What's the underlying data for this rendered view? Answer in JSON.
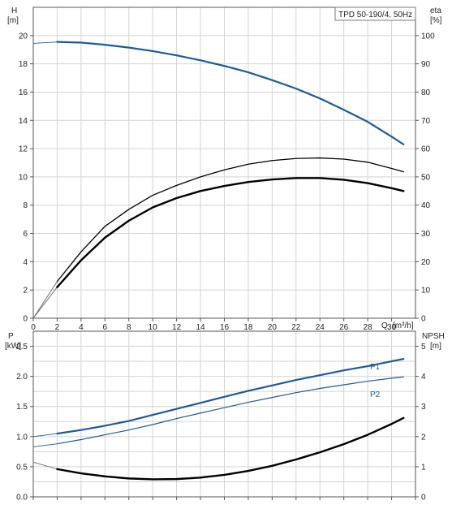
{
  "chart_data": [
    {
      "type": "line",
      "title": "TPD 50-190/4, 50Hz",
      "xlabel": "Q [m³/h]",
      "xlabel_parts": [
        "Q",
        "[m³/h]"
      ],
      "ylabel": "H [m]",
      "ylabel_parts": [
        "H",
        "[m]"
      ],
      "y2label": "eta [%]",
      "y2label_parts": [
        "eta",
        "[%]"
      ],
      "xlim": [
        0,
        32
      ],
      "ylim": [
        0,
        22
      ],
      "y2lim": [
        0,
        110
      ],
      "xticks": [
        0,
        2,
        4,
        6,
        8,
        10,
        12,
        14,
        16,
        18,
        20,
        22,
        24,
        26,
        28,
        30
      ],
      "yticks": [
        0,
        2,
        4,
        6,
        8,
        10,
        12,
        14,
        16,
        18,
        20
      ],
      "y2ticks": [
        0,
        10,
        20,
        30,
        40,
        50,
        60,
        70,
        80,
        90,
        100
      ],
      "grid": true,
      "series": [
        {
          "axis": "left",
          "color": "#1f5a96",
          "x": [
            0,
            2,
            4,
            6,
            8,
            10,
            12,
            14,
            16,
            18,
            20,
            22,
            24,
            26,
            28,
            30,
            31
          ],
          "values": [
            19.45,
            19.55,
            19.5,
            19.35,
            19.15,
            18.9,
            18.6,
            18.25,
            17.85,
            17.4,
            16.85,
            16.25,
            15.55,
            14.75,
            13.9,
            12.85,
            12.3
          ]
        },
        {
          "axis": "right",
          "color": "#000000",
          "x": [
            0,
            2,
            4,
            6,
            8,
            10,
            12,
            14,
            16,
            18,
            20,
            22,
            24,
            26,
            28,
            30,
            31
          ],
          "values": [
            0,
            13,
            23.5,
            32.5,
            38.5,
            43.5,
            47,
            50,
            52.5,
            54.5,
            55.8,
            56.5,
            56.7,
            56.3,
            55.2,
            53,
            51.8
          ]
        },
        {
          "axis": "right",
          "color": "#000000",
          "x": [
            0,
            2,
            4,
            6,
            8,
            10,
            12,
            14,
            16,
            18,
            20,
            22,
            24,
            26,
            28,
            30,
            31
          ],
          "values": [
            0,
            11,
            20.5,
            28.5,
            34.5,
            39.2,
            42.5,
            45,
            46.8,
            48.2,
            49.1,
            49.6,
            49.6,
            49,
            47.8,
            46,
            45
          ]
        }
      ]
    },
    {
      "type": "line",
      "xlim": [
        0,
        32
      ],
      "ylabel": "P [kW]",
      "ylabel_parts": [
        "P",
        "[kW]"
      ],
      "y2label": "NPSH [m]",
      "y2label_parts": [
        "NPSH",
        "[m]"
      ],
      "ylim": [
        0,
        2.75
      ],
      "y2lim": [
        0,
        5.5
      ],
      "yticks": [
        0,
        0.5,
        1.0,
        1.5,
        2.0,
        2.5
      ],
      "ytick_labels": [
        "0.0",
        "0.5",
        "1.0",
        "1.5",
        "2.0",
        "2.5"
      ],
      "y2ticks": [
        0,
        1,
        2,
        3,
        4,
        5
      ],
      "grid": true,
      "series": [
        {
          "name": "P1",
          "axis": "left",
          "color": "#1f5a96",
          "x": [
            0,
            2,
            4,
            6,
            8,
            10,
            12,
            14,
            16,
            18,
            20,
            22,
            24,
            26,
            28,
            30,
            31
          ],
          "values": [
            1.0,
            1.05,
            1.11,
            1.18,
            1.26,
            1.36,
            1.46,
            1.56,
            1.66,
            1.76,
            1.85,
            1.94,
            2.02,
            2.1,
            2.17,
            2.25,
            2.29
          ]
        },
        {
          "name": "P2",
          "axis": "left",
          "color": "#1f5a96",
          "x": [
            0,
            2,
            4,
            6,
            8,
            10,
            12,
            14,
            16,
            18,
            20,
            22,
            24,
            26,
            28,
            30,
            31
          ],
          "values": [
            0.83,
            0.88,
            0.95,
            1.03,
            1.11,
            1.2,
            1.3,
            1.39,
            1.48,
            1.57,
            1.65,
            1.73,
            1.8,
            1.86,
            1.92,
            1.97,
            1.99
          ]
        },
        {
          "axis": "right",
          "color": "#000000",
          "x": [
            0,
            2,
            4,
            6,
            8,
            10,
            12,
            14,
            16,
            18,
            20,
            22,
            24,
            26,
            28,
            30,
            31
          ],
          "values": [
            1.15,
            0.92,
            0.78,
            0.68,
            0.61,
            0.58,
            0.59,
            0.64,
            0.73,
            0.86,
            1.03,
            1.24,
            1.48,
            1.75,
            2.06,
            2.42,
            2.62
          ]
        }
      ]
    }
  ]
}
